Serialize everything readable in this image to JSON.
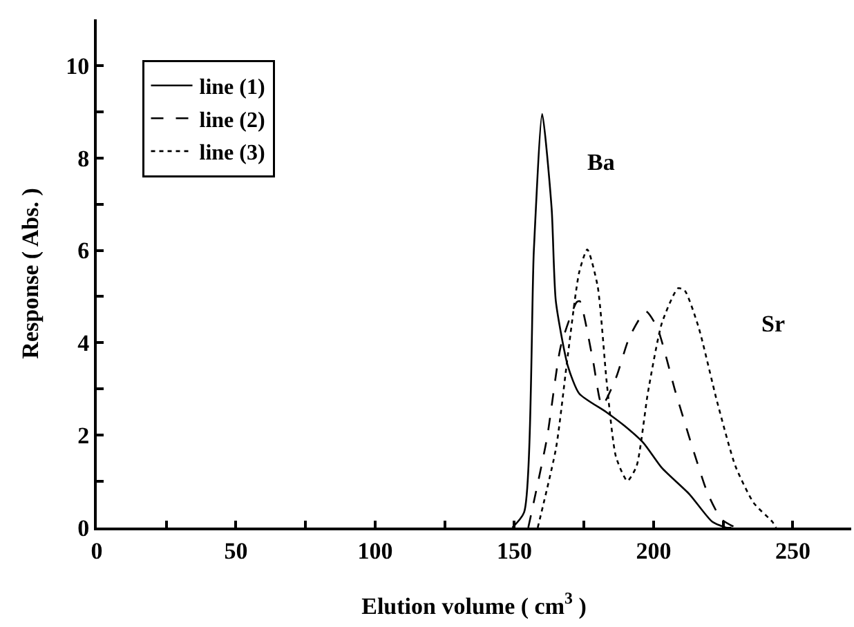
{
  "chart_data": {
    "type": "line",
    "xlabel": "Elution volume ( cm$^{3}$ )",
    "ylabel": "Response ( Abs. )",
    "xlim": [
      0,
      271
    ],
    "ylim": [
      0,
      11
    ],
    "xticks": [
      0,
      {
        "value": 25,
        "label": null
      },
      50,
      {
        "value": 75,
        "label": null
      },
      100,
      {
        "value": 125,
        "label": null
      },
      150,
      {
        "value": 175,
        "label": null
      },
      200,
      {
        "value": 225,
        "label": null
      },
      250
    ],
    "yticks": [
      0,
      {
        "value": 1,
        "label": null
      },
      2,
      {
        "value": 3,
        "label": null
      },
      4,
      {
        "value": 5,
        "label": null
      },
      6,
      {
        "value": 7,
        "label": null
      },
      8,
      {
        "value": 9,
        "label": null
      },
      10
    ],
    "legend": "top left",
    "marker": "none",
    "annotations": [
      "Ba",
      "Sr"
    ],
    "series": [
      {
        "name": "line (1)",
        "color": "#000000",
        "line_style": "solid",
        "x": [
          149.3,
          153.5,
          157,
          160,
          163.4,
          164.9,
          169.2,
          173.3,
          183,
          189.6,
          196.4,
          203,
          212.9,
          221,
          226,
          228
        ],
        "values": [
          0,
          0.33,
          6,
          8.95,
          6.9,
          4.9,
          3.5,
          2.9,
          2.5,
          2.2,
          1.83,
          1.29,
          0.72,
          0.13,
          0,
          0
        ]
      },
      {
        "name": "line (2)",
        "color": "#000000",
        "line_style": "dashed",
        "x": [
          155,
          161.7,
          166.7,
          172.4,
          173.5,
          178.2,
          181.5,
          186.5,
          191.4,
          197.2,
          201.3,
          207.9,
          214.5,
          219.5,
          224.4,
          229.4
        ],
        "values": [
          0,
          1.93,
          3.93,
          4.88,
          4.9,
          3.63,
          2.64,
          3.24,
          4.13,
          4.68,
          4.33,
          2.93,
          1.63,
          0.73,
          0.18,
          0
        ]
      },
      {
        "name": "line (3)",
        "color": "#000000",
        "line_style": "dotted",
        "x": [
          158.4,
          165,
          169.2,
          173.3,
          176.2,
          179.9,
          183.2,
          186.5,
          190.6,
          193.9,
          198,
          203,
          208.8,
          211.2,
          216.2,
          222.8,
          229.4,
          236,
          242.6,
          244
        ],
        "values": [
          0,
          1.73,
          3.73,
          5.53,
          6.02,
          5.23,
          3.13,
          1.53,
          1.01,
          1.33,
          2.93,
          4.43,
          5.18,
          5.13,
          4.33,
          2.73,
          1.33,
          0.53,
          0.13,
          0
        ]
      }
    ]
  }
}
